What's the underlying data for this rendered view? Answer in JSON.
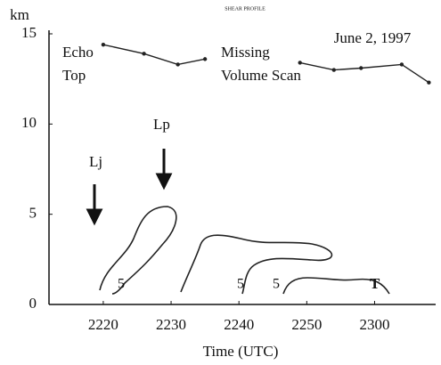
{
  "chart_data": {
    "type": "line",
    "title": "SHEAR PROFILE",
    "subtitle": "June 2, 1997",
    "y_label": "km",
    "x_label": "Time (UTC)",
    "x": [
      1340,
      1346,
      1351,
      1355,
      1362,
      1369,
      1374,
      1378,
      1384,
      1388
    ],
    "series": [
      {
        "name": "Echo Top",
        "color": "#222222",
        "values": [
          14.4,
          13.9,
          13.3,
          13.6,
          null,
          13.4,
          13.0,
          13.1,
          13.3,
          12.3
        ]
      }
    ],
    "xlim": [
      1332,
      1389
    ],
    "ylim": [
      0,
      15
    ],
    "xticks": [
      {
        "value": 1340,
        "label": "2220"
      },
      {
        "value": 1350,
        "label": "2230"
      },
      {
        "value": 1360,
        "label": "2240"
      },
      {
        "value": 1370,
        "label": "2250"
      },
      {
        "value": 1380,
        "label": "2300"
      }
    ],
    "yticks": [
      0,
      5,
      10,
      15
    ],
    "annotations": {
      "echo_top": [
        "Echo",
        "Top"
      ],
      "missing": [
        "Missing",
        "Volume Scan"
      ],
      "lj": "Lj",
      "lp": "Lp",
      "contour_labels": [
        "5",
        "5",
        "5",
        "T"
      ]
    }
  }
}
